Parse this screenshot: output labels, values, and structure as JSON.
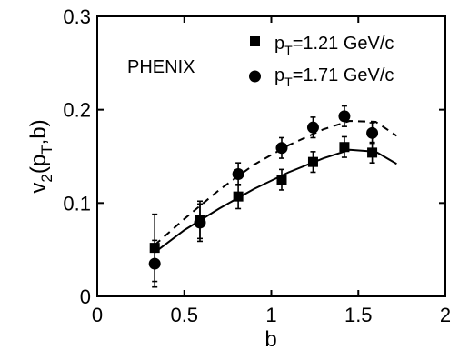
{
  "chart_data": {
    "type": "scatter",
    "xlabel": "b",
    "ylabel_main": "v",
    "ylabel_sub": "2",
    "ylabel_rest": "(p",
    "ylabel_sub2": "T",
    "ylabel_end": ",b)",
    "xlim": [
      0,
      2
    ],
    "ylim": [
      0,
      0.3
    ],
    "x_ticks": [
      0,
      0.5,
      1,
      1.5,
      2
    ],
    "x_tick_labels": [
      "0",
      "0.5",
      "1",
      "1.5",
      "2"
    ],
    "y_ticks": [
      0,
      0.1,
      0.2,
      0.3
    ],
    "y_tick_labels": [
      "0",
      "0.1",
      "0.2",
      "0.3"
    ],
    "grid": false,
    "annotation": "PHENIX",
    "legend_position": "top-right",
    "series": [
      {
        "name_main": "p",
        "name_sub": "T",
        "name_rest": "=1.21 GeV/c",
        "marker": "square",
        "x": [
          0.33,
          0.59,
          0.81,
          1.06,
          1.24,
          1.42,
          1.58
        ],
        "y": [
          0.052,
          0.082,
          0.107,
          0.125,
          0.144,
          0.16,
          0.154
        ],
        "err": [
          0.036,
          0.02,
          0.013,
          0.011,
          0.011,
          0.011,
          0.011
        ]
      },
      {
        "name_main": "p",
        "name_sub": "T",
        "name_rest": "=1.71 GeV/c",
        "marker": "circle",
        "x": [
          0.33,
          0.59,
          0.81,
          1.06,
          1.24,
          1.42,
          1.58
        ],
        "y": [
          0.035,
          0.079,
          0.131,
          0.159,
          0.181,
          0.193,
          0.175
        ],
        "err": [
          0.025,
          0.02,
          0.012,
          0.011,
          0.011,
          0.011,
          0.011
        ]
      }
    ],
    "curves": [
      {
        "style": "solid",
        "x": [
          0.33,
          0.5,
          0.7,
          0.9,
          1.1,
          1.3,
          1.45,
          1.6,
          1.72
        ],
        "y": [
          0.047,
          0.071,
          0.094,
          0.115,
          0.133,
          0.148,
          0.157,
          0.155,
          0.142
        ]
      },
      {
        "style": "dashed",
        "x": [
          0.33,
          0.5,
          0.7,
          0.9,
          1.1,
          1.3,
          1.45,
          1.6,
          1.72
        ],
        "y": [
          0.055,
          0.083,
          0.114,
          0.141,
          0.162,
          0.179,
          0.188,
          0.187,
          0.172
        ]
      }
    ]
  }
}
